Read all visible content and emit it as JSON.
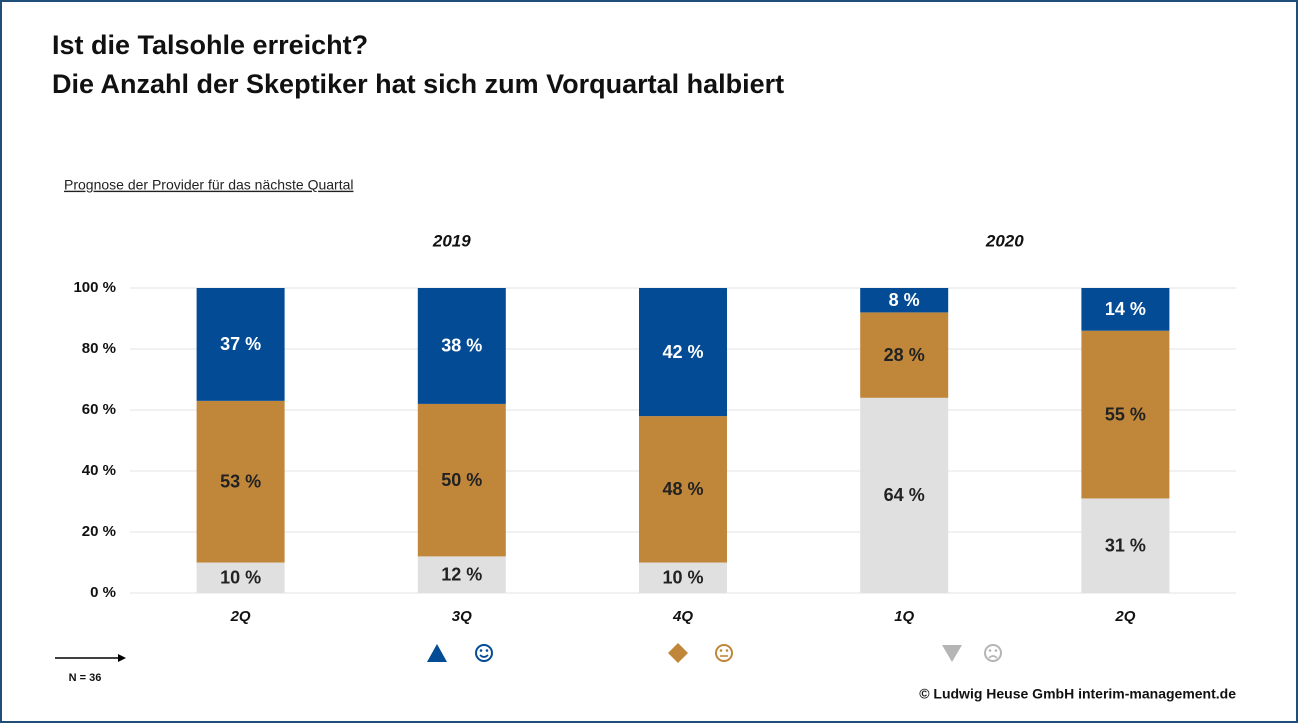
{
  "chart_data": {
    "type": "stacked_bar",
    "title": [
      "Ist die Talsohle erreicht?",
      "Die Anzahl der Skeptiker hat sich zum Vorquartal halbiert"
    ],
    "subtitle": "Prognose der Provider für das nächste Quartal",
    "year_groups": [
      "2019",
      "2020"
    ],
    "categories": [
      "2Q",
      "3Q",
      "4Q",
      "1Q",
      "2Q"
    ],
    "series": [
      {
        "color": "#e0e0e0",
        "label_color": "#222222",
        "values": [
          10,
          12,
          10,
          64,
          31
        ],
        "value_labels": [
          "10 %",
          "12 %",
          "10 %",
          "64 %",
          "31 %"
        ]
      },
      {
        "color": "#c0873a",
        "label_color": "#222222",
        "values": [
          53,
          50,
          48,
          28,
          55
        ],
        "value_labels": [
          "53 %",
          "50 %",
          "48 %",
          "28 %",
          "55 %"
        ]
      },
      {
        "color": "#034b95",
        "label_color": "#ffffff",
        "values": [
          37,
          38,
          42,
          8,
          14
        ],
        "value_labels": [
          "37 %",
          "38 %",
          "42 %",
          "8 %",
          "14 %"
        ]
      }
    ],
    "ylim": [
      0,
      100
    ],
    "yticks": [
      {
        "value": 0,
        "label": "0 %"
      },
      {
        "value": 20,
        "label": "20 %"
      },
      {
        "value": 40,
        "label": "40 %"
      },
      {
        "value": 60,
        "label": "60 %"
      },
      {
        "value": 80,
        "label": "80 %"
      },
      {
        "value": 100,
        "label": "100 %"
      }
    ],
    "grid": true,
    "note": "N = 36",
    "source": "© Ludwig Heuse GmbH interim-management.de"
  }
}
